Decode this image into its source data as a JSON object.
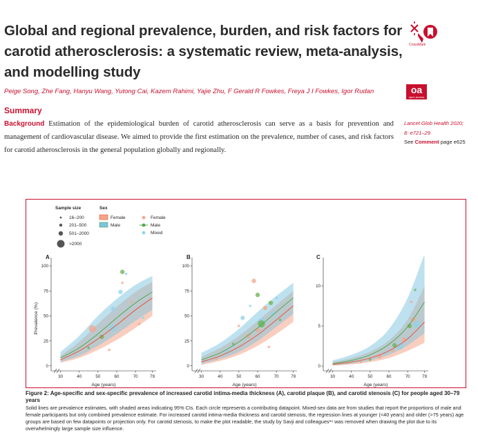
{
  "paper": {
    "title_lines": [
      "Global and regional prevalence, burden, and risk factors for",
      "carotid atherosclerosis: a systematic review, meta-analysis,",
      "and modelling study"
    ],
    "crossmark_label": "CrossMark",
    "authors": "Peige Song, Zhe Fang, Hanyu Wang, Yutong Cai, Kazem Rahimi, Yajie Zhu, F Gerald R Fowkes, Freya J I Fowkes, Igor Rudan",
    "oa_badge": "oa",
    "oa_badge_sub": "open access",
    "summary_heading": "Summary",
    "background_label": "Background",
    "background_text": "Estimation of the epidemiological burden of carotid atherosclerosis can serve as a basis for prevention and management of cardiovascular disease. We aimed to provide the first estimation on the prevalence, number of cases, and risk factors for carotid atherosclerosis in the general population globally and regionally.",
    "sidebar": {
      "journal_ref_1": "Lancet Glob Health 2020;",
      "journal_ref_2": "8: e721–29",
      "see_text": "See",
      "comment_link": "Comment",
      "page_text": "page e625"
    }
  },
  "figure": {
    "legend": {
      "sample_size_title": "Sample size",
      "sample_sizes": [
        "16–200",
        "201–500",
        "501–2000",
        ">2000"
      ],
      "sex_title": "Sex",
      "sex_band_items": [
        "Female",
        "Male"
      ],
      "sex_point_items": [
        "Female",
        "Male",
        "Mixed"
      ]
    },
    "colors": {
      "female": "#f4a58a",
      "male": "#7ec3e0",
      "mixed": "#8fd3ea",
      "female_line": "#e8553a",
      "male_line": "#52a84a",
      "accent": "#c8102e"
    },
    "caption_title": "Figure 2: Age-specific and sex-specific prevalence of increased carotid intima-media thickness (A), carotid plaque (B), and carotid stenosis (C) for people aged 30–79 years",
    "caption_body": "Solid lines are prevalence estimates, with shaded areas indicating 95% CIs. Each circle represents a contributing datapoint. Mixed-sex data are from studies that report the proportions of male and female participants but only combined prevalence estimate. For increased carotid intima-media thickness and carotid stenosis, the regression lines at younger (<40 years) and older (>75 years) age groups are based on few datapoints or projection only. For carotid stenosis, to make the plot readable, the study by Savji and colleagues³⁴ was removed when drawing the plot due to its overwhelmingly large sample size influence."
  },
  "chart_data": [
    {
      "type": "line",
      "panel": "A",
      "xlabel": "Age (years)",
      "ylabel": "Prevalence (%)",
      "xlim": [
        25,
        81
      ],
      "ylim": [
        -5,
        100
      ],
      "x_ticks": [
        30,
        40,
        50,
        60,
        70,
        79
      ],
      "y_ticks": [
        0,
        25,
        50,
        75,
        100
      ],
      "x": [
        30,
        40,
        50,
        60,
        70,
        79
      ],
      "series": [
        {
          "name": "Female",
          "values": [
            6,
            15,
            27,
            41,
            56,
            68
          ],
          "lower": [
            3,
            8,
            16,
            26,
            38,
            50
          ],
          "upper": [
            10,
            24,
            42,
            59,
            74,
            84
          ]
        },
        {
          "name": "Male",
          "values": [
            8,
            18,
            32,
            48,
            63,
            74
          ],
          "lower": [
            4,
            10,
            20,
            32,
            45,
            56
          ],
          "upper": [
            14,
            30,
            50,
            67,
            81,
            90
          ]
        }
      ],
      "points": [
        {
          "x": 58,
          "y": 57,
          "size": 2,
          "sex": "Mixed"
        },
        {
          "x": 47,
          "y": 37,
          "size": 3,
          "sex": "Female"
        },
        {
          "x": 52,
          "y": 29,
          "size": 2,
          "sex": "Male"
        },
        {
          "x": 56,
          "y": 16,
          "size": 1,
          "sex": "Female"
        },
        {
          "x": 62,
          "y": 74,
          "size": 2,
          "sex": "Mixed"
        },
        {
          "x": 63,
          "y": 94,
          "size": 2,
          "sex": "Male"
        },
        {
          "x": 65,
          "y": 92,
          "size": 1,
          "sex": "Mixed"
        },
        {
          "x": 63,
          "y": 83,
          "size": 1,
          "sex": "Female"
        },
        {
          "x": 72,
          "y": 42,
          "size": 1,
          "sex": "Female"
        },
        {
          "x": 74,
          "y": 48,
          "size": 1,
          "sex": "Mixed"
        },
        {
          "x": 64,
          "y": 47,
          "size": 1,
          "sex": "Female"
        },
        {
          "x": 58,
          "y": 38,
          "size": 3,
          "sex": "Mixed"
        },
        {
          "x": 68,
          "y": 64,
          "size": 1,
          "sex": "Female"
        },
        {
          "x": 45,
          "y": 18,
          "size": 1,
          "sex": "Male"
        }
      ]
    },
    {
      "type": "line",
      "panel": "B",
      "xlabel": "Age (years)",
      "ylabel": "",
      "xlim": [
        25,
        81
      ],
      "ylim": [
        -5,
        100
      ],
      "x_ticks": [
        30,
        40,
        50,
        60,
        70,
        79
      ],
      "y_ticks": [
        0,
        25,
        50,
        75,
        100
      ],
      "x": [
        30,
        40,
        50,
        60,
        70,
        79
      ],
      "series": [
        {
          "name": "Female",
          "values": [
            4,
            10,
            19,
            31,
            46,
            60
          ],
          "lower": [
            1,
            5,
            11,
            20,
            32,
            44
          ],
          "upper": [
            9,
            18,
            30,
            45,
            61,
            75
          ]
        },
        {
          "name": "Male",
          "values": [
            6,
            13,
            24,
            38,
            54,
            68
          ],
          "lower": [
            2,
            7,
            14,
            25,
            39,
            52
          ],
          "upper": [
            13,
            23,
            37,
            54,
            70,
            83
          ]
        }
      ],
      "points": [
        {
          "x": 58,
          "y": 85,
          "size": 2,
          "sex": "Female"
        },
        {
          "x": 60,
          "y": 71,
          "size": 2,
          "sex": "Male"
        },
        {
          "x": 52,
          "y": 48,
          "size": 2,
          "sex": "Mixed"
        },
        {
          "x": 62,
          "y": 44,
          "size": 3,
          "sex": "Mixed"
        },
        {
          "x": 64,
          "y": 58,
          "size": 2,
          "sex": "Female"
        },
        {
          "x": 67,
          "y": 63,
          "size": 2,
          "sex": "Male"
        },
        {
          "x": 70,
          "y": 68,
          "size": 1,
          "sex": "Mixed"
        },
        {
          "x": 55,
          "y": 30,
          "size": 2,
          "sex": "Female"
        },
        {
          "x": 47,
          "y": 22,
          "size": 1,
          "sex": "Male"
        },
        {
          "x": 44,
          "y": 14,
          "size": 2,
          "sex": "Mixed"
        },
        {
          "x": 38,
          "y": 7,
          "size": 1,
          "sex": "Female"
        },
        {
          "x": 60,
          "y": 36,
          "size": 2,
          "sex": "Female"
        },
        {
          "x": 72,
          "y": 46,
          "size": 1,
          "sex": "Male"
        },
        {
          "x": 66,
          "y": 19,
          "size": 1,
          "sex": "Female"
        },
        {
          "x": 56,
          "y": 60,
          "size": 1,
          "sex": "Mixed"
        },
        {
          "x": 62,
          "y": 42,
          "size": 3,
          "sex": "Male"
        },
        {
          "x": 50,
          "y": 40,
          "size": 1,
          "sex": "Female"
        },
        {
          "x": 68,
          "y": 52,
          "size": 2,
          "sex": "Mixed"
        }
      ]
    },
    {
      "type": "line",
      "panel": "C",
      "xlabel": "Age (years)",
      "ylabel": "",
      "xlim": [
        25,
        81
      ],
      "ylim": [
        -0.6,
        12.5
      ],
      "x_ticks": [
        30,
        40,
        50,
        60,
        70,
        79
      ],
      "y_ticks": [
        0,
        5,
        10
      ],
      "x": [
        30,
        40,
        50,
        60,
        70,
        79
      ],
      "series": [
        {
          "name": "Female",
          "values": [
            0.2,
            0.5,
            1.0,
            1.9,
            3.4,
            5.5
          ],
          "lower": [
            0.05,
            0.2,
            0.5,
            1.0,
            1.9,
            2.9
          ],
          "upper": [
            0.5,
            1.0,
            1.8,
            3.2,
            5.8,
            10.0
          ]
        },
        {
          "name": "Male",
          "values": [
            0.3,
            0.7,
            1.4,
            2.7,
            4.9,
            8.0
          ],
          "lower": [
            0.1,
            0.3,
            0.7,
            1.4,
            2.6,
            4.1
          ],
          "upper": [
            0.7,
            1.4,
            2.5,
            4.6,
            8.5,
            14.0
          ]
        }
      ],
      "points": [
        {
          "x": 66,
          "y": 2.5,
          "size": 3,
          "sex": "Mixed"
        },
        {
          "x": 68,
          "y": 3.3,
          "size": 2,
          "sex": "Female"
        },
        {
          "x": 71,
          "y": 5.0,
          "size": 2,
          "sex": "Male"
        },
        {
          "x": 73,
          "y": 5.8,
          "size": 2,
          "sex": "Female"
        },
        {
          "x": 75,
          "y": 5.2,
          "size": 3,
          "sex": "Mixed"
        },
        {
          "x": 62,
          "y": 1.9,
          "size": 1,
          "sex": "Female"
        },
        {
          "x": 58,
          "y": 1.6,
          "size": 1,
          "sex": "Mixed"
        },
        {
          "x": 50,
          "y": 0.8,
          "size": 1,
          "sex": "Male"
        },
        {
          "x": 45,
          "y": 0.5,
          "size": 1,
          "sex": "Female"
        },
        {
          "x": 72,
          "y": 8.0,
          "size": 1,
          "sex": "Female"
        },
        {
          "x": 74,
          "y": 9.5,
          "size": 1,
          "sex": "Male"
        },
        {
          "x": 70,
          "y": 3.6,
          "size": 1,
          "sex": "Mixed"
        },
        {
          "x": 55,
          "y": 1.2,
          "size": 2,
          "sex": "Female"
        },
        {
          "x": 63,
          "y": 2.6,
          "size": 2,
          "sex": "Male"
        }
      ]
    }
  ]
}
